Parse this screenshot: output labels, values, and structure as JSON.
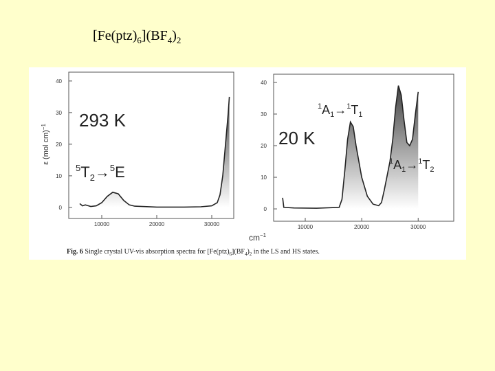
{
  "title": [
    "[Fe(ptz)",
    "6",
    "](BF",
    "4",
    ")",
    "2"
  ],
  "caption": [
    "Fig. 6",
    " Single crystal UV-vis absorption spectra for [Fe(ptz)",
    "6",
    "](BF",
    "4",
    ")",
    "2",
    " in the LS and HS states."
  ],
  "chart_data": [
    {
      "type": "line",
      "color": "#222222",
      "annotations": [
        [
          "293 K"
        ],
        [
          "5",
          "T",
          "2",
          "→",
          "5",
          "E"
        ]
      ],
      "ylabel": [
        "ε (mol cm)",
        "−1"
      ],
      "x": [
        6000,
        6500,
        7000,
        8000,
        9000,
        10000,
        11000,
        12000,
        13000,
        14000,
        15000,
        16000,
        20000,
        25000,
        28000,
        30000,
        31000,
        31500,
        32000,
        32500,
        33000,
        33200
      ],
      "values": [
        1.2,
        0.5,
        0.8,
        0.3,
        0.5,
        1.5,
        3.5,
        4.8,
        4.3,
        2.2,
        0.8,
        0.4,
        0.1,
        0.1,
        0.2,
        0.5,
        1.5,
        4,
        10,
        20,
        30,
        35
      ],
      "xlim": [
        4000,
        34000
      ],
      "ylim": [
        -3.5,
        42.8
      ],
      "xticks": [
        10000,
        20000,
        30000
      ],
      "yticks": [
        0,
        10,
        20,
        30,
        40
      ]
    },
    {
      "type": "line",
      "color": "#222222",
      "annotations": [
        [
          "20 K"
        ],
        [
          "1",
          "A",
          "1",
          "→",
          "1",
          "T",
          "1"
        ],
        [
          "1",
          "A",
          "1",
          "→",
          "1",
          "T",
          "2"
        ]
      ],
      "xlabel": [
        "cm",
        "−1"
      ],
      "x": [
        6000,
        6200,
        8000,
        12000,
        16000,
        16500,
        17000,
        17500,
        18000,
        18500,
        19000,
        20000,
        21000,
        22000,
        23000,
        23500,
        24000,
        25000,
        25500,
        26000,
        26500,
        27000,
        27500,
        28000,
        28500,
        29000,
        29500,
        30000
      ],
      "values": [
        3.5,
        0.5,
        0.3,
        0.2,
        0.5,
        3,
        12,
        22,
        27.5,
        26,
        20,
        10,
        4,
        1.5,
        1,
        2,
        6,
        15,
        22,
        32,
        39,
        36,
        28,
        21,
        20,
        22,
        30,
        37
      ],
      "xlim": [
        4400,
        36300
      ],
      "ylim": [
        -3.9,
        42.6
      ],
      "xticks": [
        10000,
        20000,
        30000
      ],
      "yticks": [
        0,
        10,
        20,
        30,
        40
      ]
    }
  ]
}
